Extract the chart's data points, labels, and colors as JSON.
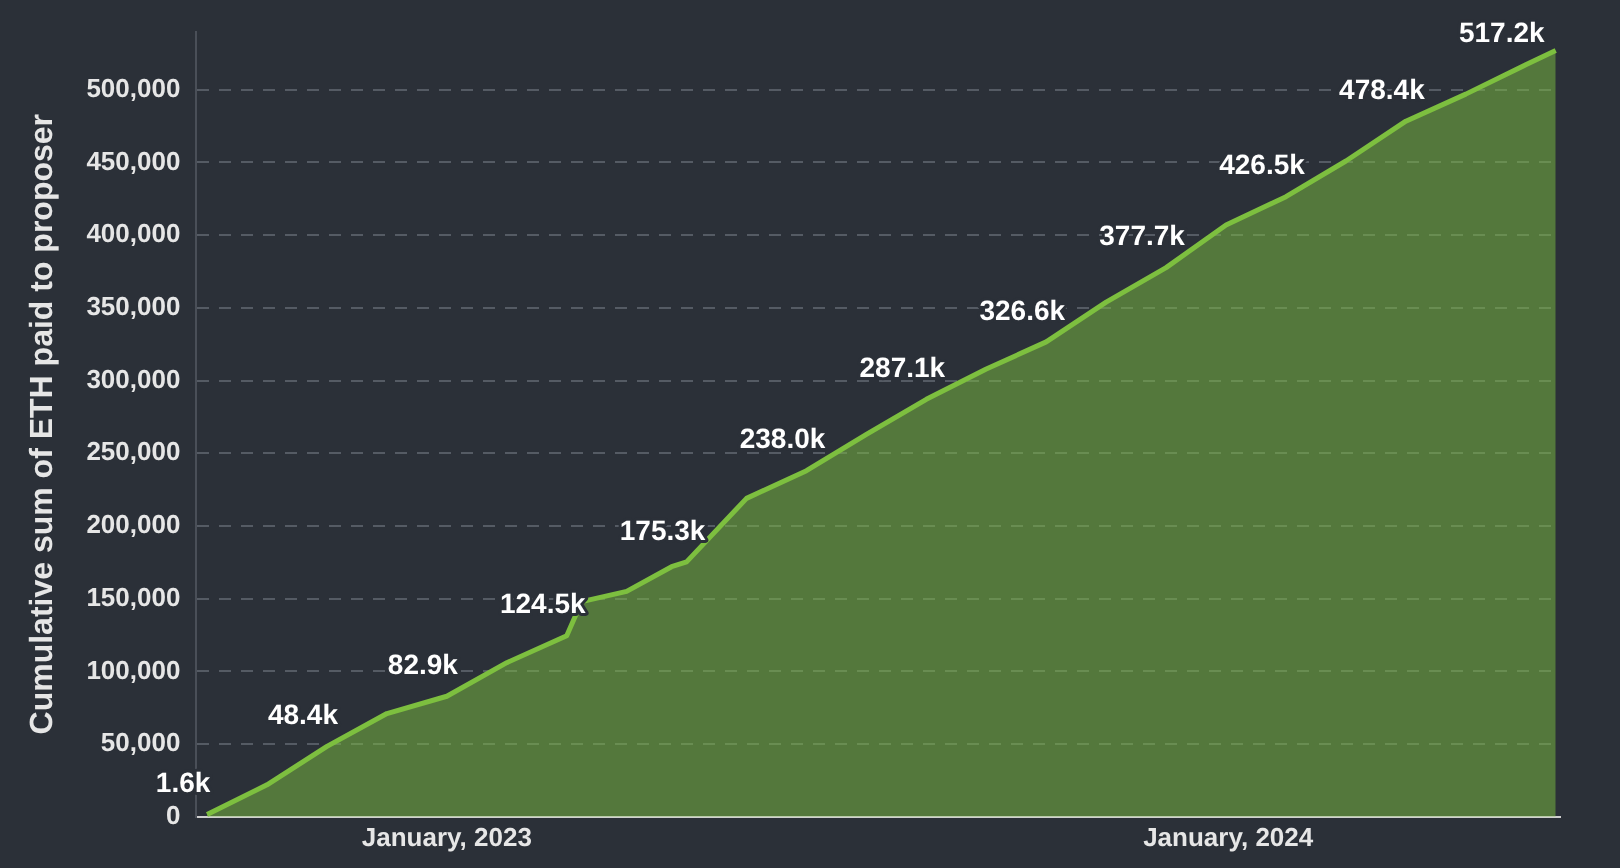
{
  "chart_data": {
    "type": "area",
    "ylabel": "Cumulative sum of ETH paid to proposer",
    "x": [
      "2022-09-11",
      "2022-10-09",
      "2022-11-06",
      "2022-12-04",
      "2023-01-01",
      "2023-01-29",
      "2023-02-26",
      "2023-03-05",
      "2023-03-26",
      "2023-04-16",
      "2023-04-23",
      "2023-05-21",
      "2023-06-18",
      "2023-07-16",
      "2023-08-13",
      "2023-09-10",
      "2023-10-08",
      "2023-11-05",
      "2023-12-03",
      "2023-12-31",
      "2024-01-28",
      "2024-02-25",
      "2024-03-24",
      "2024-04-21",
      "2024-05-19",
      "2024-06-02"
    ],
    "series": [
      {
        "color": "#7dbf3f",
        "values": [
          1600,
          22000,
          48400,
          71000,
          82900,
          106000,
          124500,
          148000,
          155000,
          172000,
          175300,
          219000,
          238000,
          263000,
          287100,
          308000,
          326600,
          354000,
          377700,
          407000,
          426500,
          451000,
          478400,
          497000,
          517200,
          527000
        ],
        "value_labels": [
          "1.6k",
          null,
          "48.4k",
          null,
          "82.9k",
          null,
          "124.5k",
          null,
          null,
          null,
          "175.3k",
          null,
          "238.0k",
          null,
          "287.1k",
          null,
          "326.6k",
          null,
          "377.7k",
          null,
          "426.5k",
          null,
          "478.4k",
          null,
          "517.2k",
          null
        ]
      }
    ],
    "xlim": [
      "2022-09-06",
      "2024-06-04"
    ],
    "xticks": [
      {
        "value": "2023-01-01",
        "label": "January, 2023"
      },
      {
        "value": "2024-01-01",
        "label": "January, 2024"
      }
    ],
    "ylim": [
      0,
      540000
    ],
    "yticks": [
      0,
      {
        "value": 50000,
        "label": "50,000"
      },
      {
        "value": 100000,
        "label": "100,000"
      },
      {
        "value": 150000,
        "label": "150,000"
      },
      {
        "value": 200000,
        "label": "200,000"
      },
      {
        "value": 250000,
        "label": "250,000"
      },
      {
        "value": 300000,
        "label": "300,000"
      },
      {
        "value": 350000,
        "label": "350,000"
      },
      {
        "value": 400000,
        "label": "400,000"
      },
      {
        "value": 450000,
        "label": "450,000"
      },
      {
        "value": 500000,
        "label": "500,000"
      }
    ],
    "grid": "y",
    "legend": false,
    "marker": "none"
  }
}
